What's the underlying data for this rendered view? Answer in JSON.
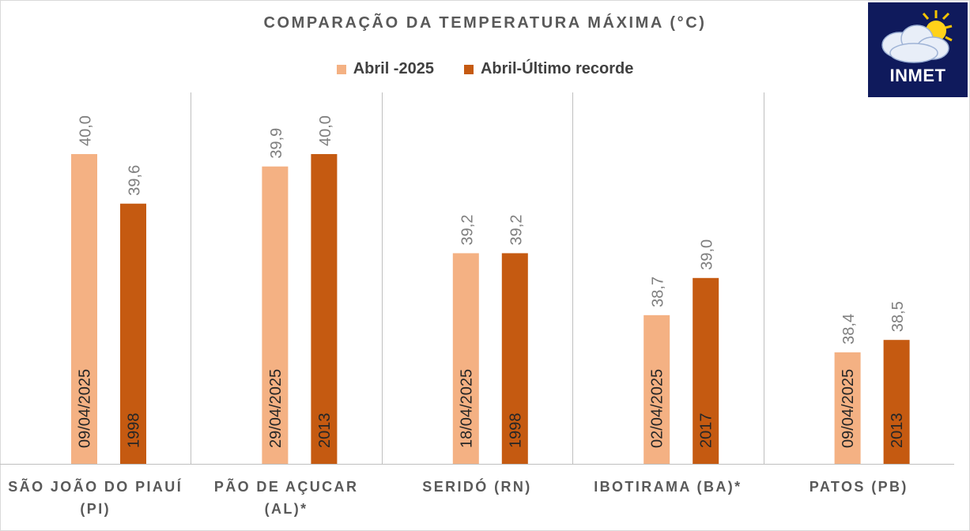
{
  "chart_data": {
    "type": "bar",
    "title": "COMPARAÇÃO DA TEMPERATURA MÁXIMA (°C)",
    "legend_position": "top",
    "grid": false,
    "ylim": [
      37.5,
      40.6
    ],
    "categories": [
      [
        "SÃO JOÃO DO PIAUÍ",
        "(PI)"
      ],
      [
        "PÃO DE AÇUCAR",
        "(AL)*"
      ],
      [
        "SERIDÓ (RN)"
      ],
      [
        "IBOTIRAMA (BA)*"
      ],
      [
        "PATOS (PB)"
      ]
    ],
    "series": [
      {
        "name": "Abril -2025",
        "color": "#f4b183",
        "values": [
          40.0,
          39.9,
          39.2,
          38.7,
          38.4
        ],
        "value_labels": [
          "40,0",
          "39,9",
          "39,2",
          "38,7",
          "38,4"
        ],
        "bar_labels": [
          "09/04/2025",
          "29/04/2025",
          "18/04/2025",
          "02/04/2025",
          "09/04/2025"
        ]
      },
      {
        "name": "Abril-Último recorde",
        "color": "#c55a11",
        "values": [
          39.6,
          40.0,
          39.2,
          39.0,
          38.5
        ],
        "value_labels": [
          "39,6",
          "40,0",
          "39,2",
          "39,0",
          "38,5"
        ],
        "bar_labels": [
          "1998",
          "2013",
          "1998",
          "2017",
          "2013"
        ]
      }
    ]
  },
  "logo": {
    "text": "INMET",
    "icon": "sun-cloud-icon",
    "bg": "#0f1a5c"
  }
}
